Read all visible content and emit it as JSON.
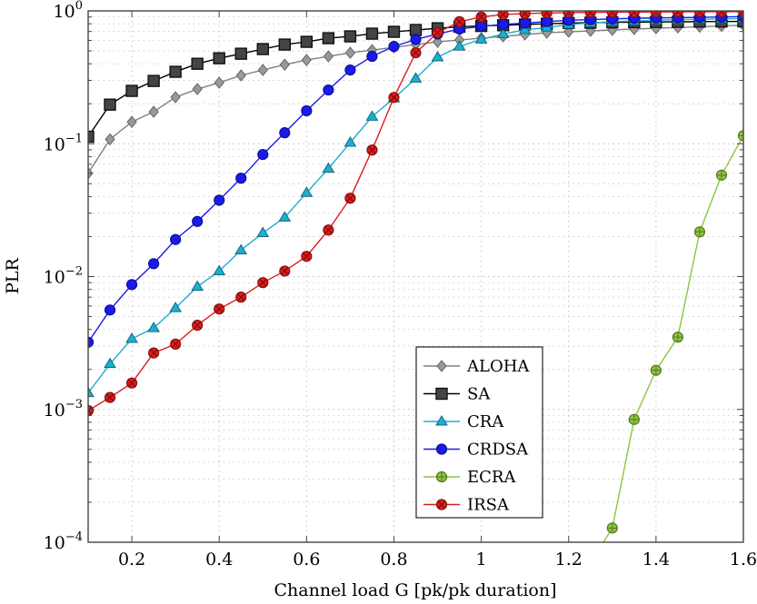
{
  "chart_data": {
    "type": "line",
    "title": "",
    "xlabel": "Channel load G [pk/pk duration]",
    "ylabel": "PLR",
    "xlim": [
      0.1,
      1.6
    ],
    "ylim": [
      0.0001,
      1
    ],
    "yscale": "log",
    "grid": true,
    "legend_position": "bottom-center",
    "x_ticks": [
      "0.2",
      "0.4",
      "0.6",
      "0.8",
      "1",
      "1.2",
      "1.4",
      "1.6"
    ],
    "y_ticks": [
      {
        "base": "10",
        "exp": "0"
      },
      {
        "base": "10",
        "exp": "−1"
      },
      {
        "base": "10",
        "exp": "−2"
      },
      {
        "base": "10",
        "exp": "−3"
      },
      {
        "base": "10",
        "exp": "−4"
      }
    ],
    "x": [
      0.1,
      0.15,
      0.2,
      0.25,
      0.3,
      0.35,
      0.4,
      0.45,
      0.5,
      0.55,
      0.6,
      0.65,
      0.7,
      0.75,
      0.8,
      0.85,
      0.9,
      0.95,
      1.0,
      1.05,
      1.1,
      1.15,
      1.2,
      1.25,
      1.3,
      1.35,
      1.4,
      1.45,
      1.5,
      1.55,
      1.6
    ],
    "series": [
      {
        "name": "ALOHA",
        "color": "#808080",
        "marker": "diamond",
        "values": [
          0.06,
          0.108,
          0.146,
          0.174,
          0.224,
          0.258,
          0.288,
          0.327,
          0.359,
          0.394,
          0.427,
          0.455,
          0.484,
          0.507,
          0.532,
          0.558,
          0.585,
          0.604,
          0.623,
          0.643,
          0.664,
          0.685,
          0.696,
          0.707,
          0.72,
          0.73,
          0.74,
          0.75,
          0.76,
          0.77,
          0.78
        ]
      },
      {
        "name": "SA",
        "color": "#000000",
        "marker": "square",
        "values": [
          0.113,
          0.197,
          0.25,
          0.297,
          0.348,
          0.4,
          0.44,
          0.476,
          0.516,
          0.558,
          0.585,
          0.623,
          0.643,
          0.674,
          0.696,
          0.718,
          0.74,
          0.76,
          0.77,
          0.78,
          0.79,
          0.8,
          0.81,
          0.815,
          0.82,
          0.823,
          0.826,
          0.828,
          0.83,
          0.832,
          0.834
        ]
      },
      {
        "name": "CRA",
        "color": "#1eaed0",
        "marker": "triangle",
        "values": [
          0.00133,
          0.0022,
          0.0034,
          0.0041,
          0.0058,
          0.0084,
          0.011,
          0.0158,
          0.0213,
          0.0279,
          0.0427,
          0.065,
          0.102,
          0.16,
          0.22,
          0.31,
          0.448,
          0.54,
          0.61,
          0.67,
          0.72,
          0.75,
          0.79,
          0.81,
          0.83,
          0.84,
          0.85,
          0.86,
          0.865,
          0.87,
          0.875
        ]
      },
      {
        "name": "CRDSA",
        "color": "#1a1aee",
        "marker": "circle",
        "values": [
          0.0032,
          0.0056,
          0.0087,
          0.0125,
          0.019,
          0.026,
          0.0376,
          0.055,
          0.083,
          0.121,
          0.177,
          0.254,
          0.359,
          0.455,
          0.54,
          0.61,
          0.67,
          0.73,
          0.765,
          0.79,
          0.81,
          0.83,
          0.85,
          0.86,
          0.87,
          0.88,
          0.885,
          0.89,
          0.895,
          0.9,
          0.905
        ]
      },
      {
        "name": "ECRA",
        "color": "#8cc63f",
        "marker": "circle-plus",
        "x": [
          1.25,
          1.3,
          1.35,
          1.4,
          1.45,
          1.5,
          1.55,
          1.6
        ],
        "values": [
          7e-05,
          0.000128,
          0.00084,
          0.00197,
          0.0035,
          0.0217,
          0.058,
          0.115
        ]
      },
      {
        "name": "IRSA",
        "color": "#dd1c1c",
        "marker": "circle-x",
        "values": [
          0.00098,
          0.00123,
          0.00158,
          0.00266,
          0.0031,
          0.0043,
          0.0057,
          0.007,
          0.009,
          0.011,
          0.0142,
          0.0224,
          0.0389,
          0.0896,
          0.223,
          0.484,
          0.685,
          0.83,
          0.9,
          0.94,
          0.955,
          0.965,
          0.97,
          0.975,
          0.978,
          0.98,
          0.982,
          0.984,
          0.985,
          0.986,
          0.987
        ]
      }
    ]
  }
}
